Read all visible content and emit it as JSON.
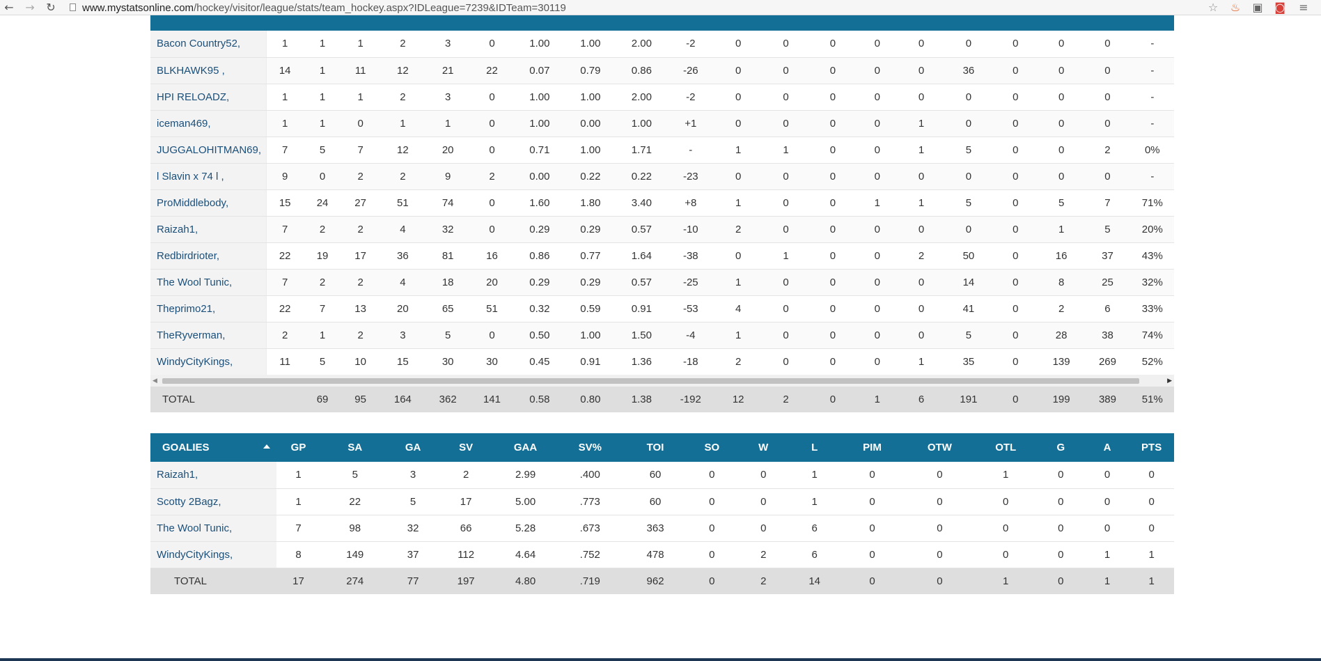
{
  "browser": {
    "url_domain": "www.mystatsonline.com",
    "url_path": "/hockey/visitor/league/stats/team_hockey.aspx?IDLeague=7239&IDTeam=30119"
  },
  "skaters": {
    "rows": [
      {
        "name": "Bacon Country52,",
        "cells": [
          "1",
          "1",
          "1",
          "2",
          "3",
          "0",
          "1.00",
          "1.00",
          "2.00",
          "-2",
          "0",
          "0",
          "0",
          "0",
          "0",
          "0",
          "0",
          "0",
          "0",
          "-"
        ]
      },
      {
        "name": "BLKHAWK95 ,",
        "cells": [
          "14",
          "1",
          "11",
          "12",
          "21",
          "22",
          "0.07",
          "0.79",
          "0.86",
          "-26",
          "0",
          "0",
          "0",
          "0",
          "0",
          "36",
          "0",
          "0",
          "0",
          "-"
        ]
      },
      {
        "name": "HPI RELOADZ,",
        "cells": [
          "1",
          "1",
          "1",
          "2",
          "3",
          "0",
          "1.00",
          "1.00",
          "2.00",
          "-2",
          "0",
          "0",
          "0",
          "0",
          "0",
          "0",
          "0",
          "0",
          "0",
          "-"
        ]
      },
      {
        "name": "iceman469,",
        "cells": [
          "1",
          "1",
          "0",
          "1",
          "1",
          "0",
          "1.00",
          "0.00",
          "1.00",
          "+1",
          "0",
          "0",
          "0",
          "0",
          "1",
          "0",
          "0",
          "0",
          "0",
          "-"
        ]
      },
      {
        "name": "JUGGALOHITMAN69,",
        "cells": [
          "7",
          "5",
          "7",
          "12",
          "20",
          "0",
          "0.71",
          "1.00",
          "1.71",
          "-",
          "1",
          "1",
          "0",
          "0",
          "1",
          "5",
          "0",
          "0",
          "2",
          "0%"
        ]
      },
      {
        "name": "l Slavin x 74 l ,",
        "cells": [
          "9",
          "0",
          "2",
          "2",
          "9",
          "2",
          "0.00",
          "0.22",
          "0.22",
          "-23",
          "0",
          "0",
          "0",
          "0",
          "0",
          "0",
          "0",
          "0",
          "0",
          "-"
        ]
      },
      {
        "name": "ProMiddlebody,",
        "cells": [
          "15",
          "24",
          "27",
          "51",
          "74",
          "0",
          "1.60",
          "1.80",
          "3.40",
          "+8",
          "1",
          "0",
          "0",
          "1",
          "1",
          "5",
          "0",
          "5",
          "7",
          "71%"
        ]
      },
      {
        "name": "Raizah1,",
        "cells": [
          "7",
          "2",
          "2",
          "4",
          "32",
          "0",
          "0.29",
          "0.29",
          "0.57",
          "-10",
          "2",
          "0",
          "0",
          "0",
          "0",
          "0",
          "0",
          "1",
          "5",
          "20%"
        ]
      },
      {
        "name": "Redbirdrioter,",
        "cells": [
          "22",
          "19",
          "17",
          "36",
          "81",
          "16",
          "0.86",
          "0.77",
          "1.64",
          "-38",
          "0",
          "1",
          "0",
          "0",
          "2",
          "50",
          "0",
          "16",
          "37",
          "43%"
        ]
      },
      {
        "name": "The Wool Tunic,",
        "cells": [
          "7",
          "2",
          "2",
          "4",
          "18",
          "20",
          "0.29",
          "0.29",
          "0.57",
          "-25",
          "1",
          "0",
          "0",
          "0",
          "0",
          "14",
          "0",
          "8",
          "25",
          "32%"
        ]
      },
      {
        "name": "Theprimo21,",
        "cells": [
          "22",
          "7",
          "13",
          "20",
          "65",
          "51",
          "0.32",
          "0.59",
          "0.91",
          "-53",
          "4",
          "0",
          "0",
          "0",
          "0",
          "41",
          "0",
          "2",
          "6",
          "33%"
        ]
      },
      {
        "name": "TheRyverman,",
        "cells": [
          "2",
          "1",
          "2",
          "3",
          "5",
          "0",
          "0.50",
          "1.00",
          "1.50",
          "-4",
          "1",
          "0",
          "0",
          "0",
          "0",
          "5",
          "0",
          "28",
          "38",
          "74%"
        ]
      },
      {
        "name": "WindyCityKings,",
        "cells": [
          "11",
          "5",
          "10",
          "15",
          "30",
          "30",
          "0.45",
          "0.91",
          "1.36",
          "-18",
          "2",
          "0",
          "0",
          "0",
          "1",
          "35",
          "0",
          "139",
          "269",
          "52%"
        ]
      }
    ],
    "total": {
      "label": "TOTAL",
      "cells": [
        "",
        "69",
        "95",
        "164",
        "362",
        "141",
        "0.58",
        "0.80",
        "1.38",
        "-192",
        "12",
        "2",
        "0",
        "1",
        "6",
        "191",
        "0",
        "199",
        "389",
        "51%"
      ]
    }
  },
  "goalies": {
    "headers": [
      "GOALIES",
      "GP",
      "SA",
      "GA",
      "SV",
      "GAA",
      "SV%",
      "TOI",
      "SO",
      "W",
      "L",
      "PIM",
      "OTW",
      "OTL",
      "G",
      "A",
      "PTS"
    ],
    "rows": [
      {
        "name": "Raizah1,",
        "cells": [
          "1",
          "5",
          "3",
          "2",
          "2.99",
          ".400",
          "60",
          "0",
          "0",
          "1",
          "0",
          "0",
          "1",
          "0",
          "0",
          "0"
        ]
      },
      {
        "name": "Scotty 2Bagz,",
        "cells": [
          "1",
          "22",
          "5",
          "17",
          "5.00",
          ".773",
          "60",
          "0",
          "0",
          "1",
          "0",
          "0",
          "0",
          "0",
          "0",
          "0"
        ]
      },
      {
        "name": "The Wool Tunic,",
        "cells": [
          "7",
          "98",
          "32",
          "66",
          "5.28",
          ".673",
          "363",
          "0",
          "0",
          "6",
          "0",
          "0",
          "0",
          "0",
          "0",
          "0"
        ]
      },
      {
        "name": "WindyCityKings,",
        "cells": [
          "8",
          "149",
          "37",
          "112",
          "4.64",
          ".752",
          "478",
          "0",
          "2",
          "6",
          "0",
          "0",
          "0",
          "0",
          "1",
          "1"
        ]
      }
    ],
    "total": {
      "label": "TOTAL",
      "cells": [
        "17",
        "274",
        "77",
        "197",
        "4.80",
        ".719",
        "962",
        "0",
        "2",
        "14",
        "0",
        "0",
        "1",
        "0",
        "1",
        "1"
      ]
    }
  }
}
